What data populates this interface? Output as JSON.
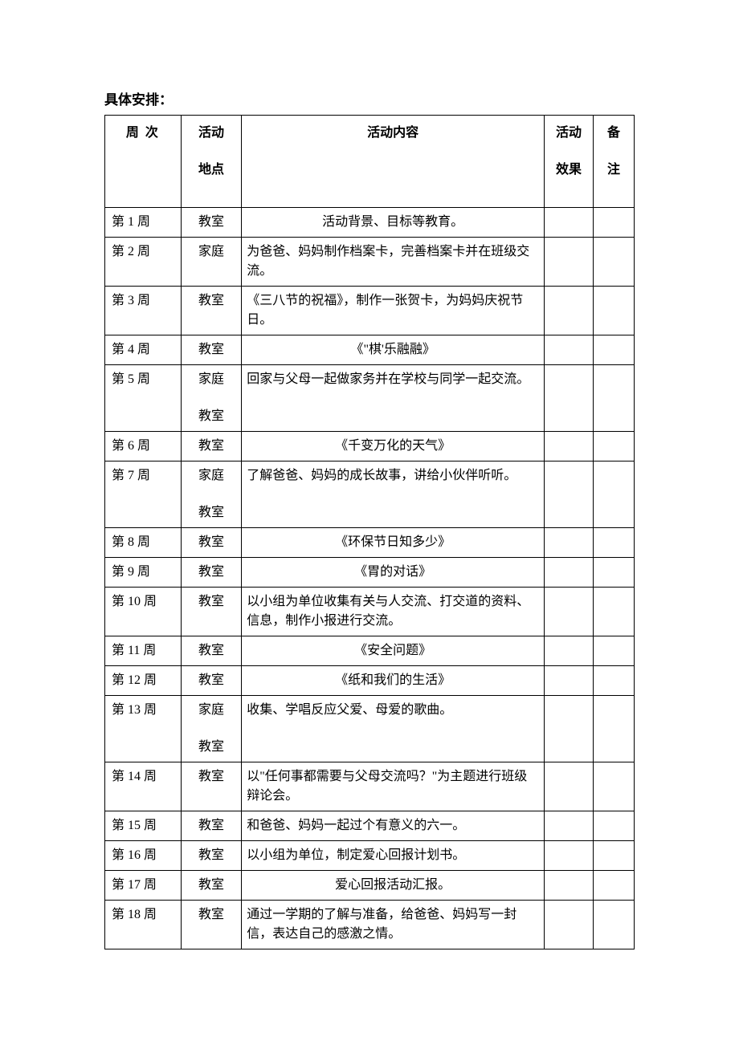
{
  "title": "具体安排：",
  "headers": {
    "week": "周 次",
    "place": "活动",
    "place2": "地点",
    "content": "活动内容",
    "effect": "活动",
    "effect2": "效果",
    "note": "备",
    "note2": "注"
  },
  "rows": [
    {
      "week": "第 1 周",
      "place": "教室",
      "content": "活动背景、目标等教育。",
      "center": true
    },
    {
      "week": "第 2 周",
      "place": "家庭",
      "content": "为爸爸、妈妈制作档案卡，完善档案卡并在班级交流。"
    },
    {
      "week": "第 3 周",
      "place": "教室",
      "content": "《三八节的祝福》，制作一张贺卡，为妈妈庆祝节日。"
    },
    {
      "week": "第 4 周",
      "place": "教室",
      "content": "《\"棋'乐融融》",
      "center": true
    },
    {
      "week": "第 5 周",
      "place": "家庭",
      "place2": "教室",
      "content": "回家与父母一起做家务并在学校与同学一起交流。"
    },
    {
      "week": "第 6 周",
      "place": "教室",
      "content": "《千变万化的天气》",
      "center": true
    },
    {
      "week": "第 7 周",
      "place": "家庭",
      "place2": "教室",
      "content": "了解爸爸、妈妈的成长故事，讲给小伙伴听听。"
    },
    {
      "week": "第 8 周",
      "place": "教室",
      "content": "《环保节日知多少》",
      "center": true
    },
    {
      "week": "第 9 周",
      "place": "教室",
      "content": "《胃的对话》",
      "center": true
    },
    {
      "week": "第 10 周",
      "place": "教室",
      "content": "以小组为单位收集有关与人交流、打交道的资料、信息，制作小报进行交流。"
    },
    {
      "week": "第 11 周",
      "place": "教室",
      "content": "《安全问题》",
      "center": true
    },
    {
      "week": "第 12 周",
      "place": "教室",
      "content": "《纸和我们的生活》",
      "center": true
    },
    {
      "week": "第 13 周",
      "place": "家庭",
      "place2": "教室",
      "content": "收集、学唱反应父爱、母爱的歌曲。"
    },
    {
      "week": "第 14 周",
      "place": "教室",
      "content": "以\"任何事都需要与父母交流吗？\"为主题进行班级辩论会。"
    },
    {
      "week": "第 15 周",
      "place": "教室",
      "content": "和爸爸、妈妈一起过个有意义的六一。"
    },
    {
      "week": "第 16 周",
      "place": "教室",
      "content": "以小组为单位，制定爱心回报计划书。"
    },
    {
      "week": "第 17 周",
      "place": "教室",
      "content": "爱心回报活动汇报。",
      "center": true
    },
    {
      "week": "第 18 周",
      "place": "教室",
      "content": "通过一学期的了解与准备，给爸爸、妈妈写一封信，表达自己的感激之情。"
    }
  ]
}
